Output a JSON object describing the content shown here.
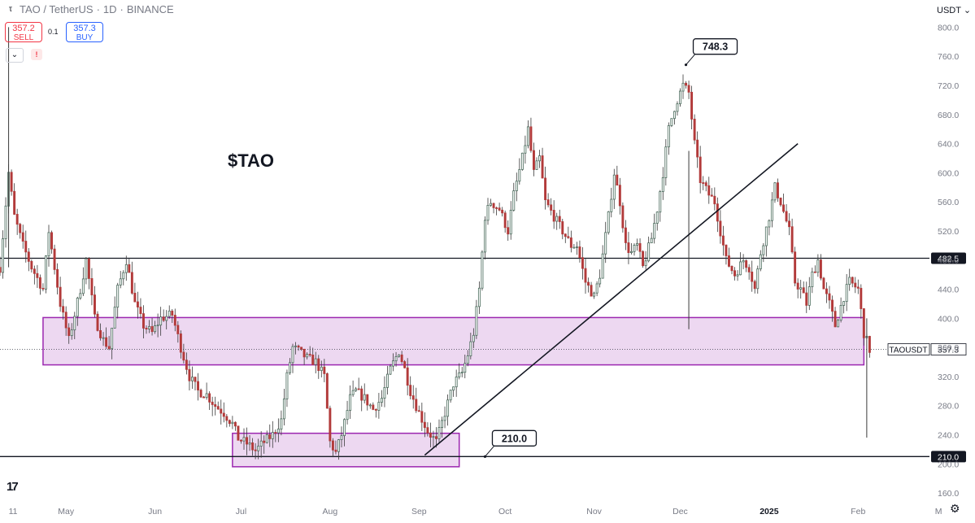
{
  "header": {
    "symbol": "TAO / TetherUS",
    "interval": "1D",
    "exchange": "BINANCE",
    "separator": "·"
  },
  "trade": {
    "sell_price": "357.2",
    "sell_label": "SELL",
    "spread": "0.1",
    "buy_price": "357.3",
    "buy_label": "BUY",
    "collapse_icon": "chevron-down-icon",
    "alert_icon": "warning-icon",
    "alert_glyph": "!"
  },
  "toolbar": {
    "currency": "USDT",
    "currency_icon": "chevron-down-icon",
    "settings_icon": "gear-icon"
  },
  "branding": {
    "logo_text": "17",
    "logo_icon": "tradingview-logo-icon"
  },
  "chart_data": {
    "type": "candlestick",
    "title": "$TAO",
    "symbol_tag": "TAOUSDT",
    "last_price": 357.3,
    "y_ticks": [
      160,
      200,
      240,
      280,
      320,
      360,
      400,
      440,
      480,
      520,
      560,
      600,
      640,
      680,
      720,
      760,
      800
    ],
    "y_range": [
      150,
      815
    ],
    "x_ticks": [
      {
        "label": "11",
        "x": 0
      },
      {
        "label": "May",
        "x": 20
      },
      {
        "label": "Jun",
        "x": 51
      },
      {
        "label": "Jul",
        "x": 81
      },
      {
        "label": "Aug",
        "x": 112
      },
      {
        "label": "Sep",
        "x": 143
      },
      {
        "label": "Oct",
        "x": 173
      },
      {
        "label": "Nov",
        "x": 204
      },
      {
        "label": "Dec",
        "x": 234
      },
      {
        "label": "2025",
        "x": 265
      },
      {
        "label": "Feb",
        "x": 296
      },
      {
        "label": "M",
        "x": 324
      }
    ],
    "x_range": [
      -3,
      320
    ],
    "horizontal_lines": [
      {
        "value": 482.5,
        "label": "482.5",
        "color": "#131722"
      },
      {
        "value": 210.0,
        "label": "210.0",
        "color": "#131722"
      }
    ],
    "zones": [
      {
        "x0": 12,
        "x1": 298,
        "y0": 336,
        "y1": 401,
        "color": "#9c27b0"
      },
      {
        "x0": 78,
        "x1": 157,
        "y0": 196,
        "y1": 242,
        "color": "#9c27b0"
      }
    ],
    "trendline": {
      "x0": 145,
      "y0": 212,
      "x1": 275,
      "y1": 640
    },
    "callouts": [
      {
        "label": "748.3",
        "x": 236,
        "value": 748.3,
        "anchor": "top"
      },
      {
        "label": "210.0",
        "x": 166,
        "value": 210.0,
        "anchor": "bottom"
      }
    ],
    "close_path": [
      [
        -3,
        470
      ],
      [
        0,
        600
      ],
      [
        2,
        540
      ],
      [
        5,
        500
      ],
      [
        8,
        470
      ],
      [
        12,
        440
      ],
      [
        14,
        520
      ],
      [
        18,
        420
      ],
      [
        21,
        370
      ],
      [
        25,
        440
      ],
      [
        27,
        480
      ],
      [
        30,
        400
      ],
      [
        33,
        370
      ],
      [
        35,
        360
      ],
      [
        38,
        440
      ],
      [
        41,
        480
      ],
      [
        44,
        420
      ],
      [
        47,
        390
      ],
      [
        50,
        380
      ],
      [
        53,
        400
      ],
      [
        57,
        405
      ],
      [
        60,
        360
      ],
      [
        63,
        320
      ],
      [
        66,
        300
      ],
      [
        69,
        295
      ],
      [
        72,
        280
      ],
      [
        75,
        270
      ],
      [
        78,
        255
      ],
      [
        80,
        235
      ],
      [
        83,
        228
      ],
      [
        86,
        218
      ],
      [
        89,
        230
      ],
      [
        92,
        240
      ],
      [
        95,
        260
      ],
      [
        97,
        320
      ],
      [
        99,
        360
      ],
      [
        101,
        355
      ],
      [
        104,
        345
      ],
      [
        107,
        340
      ],
      [
        110,
        320
      ],
      [
        112,
        230
      ],
      [
        114,
        215
      ],
      [
        116,
        240
      ],
      [
        119,
        290
      ],
      [
        121,
        300
      ],
      [
        124,
        290
      ],
      [
        127,
        275
      ],
      [
        130,
        290
      ],
      [
        133,
        330
      ],
      [
        136,
        355
      ],
      [
        138,
        330
      ],
      [
        140,
        300
      ],
      [
        143,
        270
      ],
      [
        146,
        245
      ],
      [
        149,
        230
      ],
      [
        152,
        270
      ],
      [
        155,
        310
      ],
      [
        158,
        325
      ],
      [
        160,
        350
      ],
      [
        162,
        380
      ],
      [
        164,
        440
      ],
      [
        166,
        540
      ],
      [
        168,
        560
      ],
      [
        171,
        550
      ],
      [
        174,
        520
      ],
      [
        176,
        570
      ],
      [
        179,
        620
      ],
      [
        181,
        660
      ],
      [
        183,
        600
      ],
      [
        185,
        620
      ],
      [
        187,
        560
      ],
      [
        190,
        540
      ],
      [
        193,
        520
      ],
      [
        196,
        500
      ],
      [
        198,
        500
      ],
      [
        201,
        450
      ],
      [
        204,
        430
      ],
      [
        206,
        460
      ],
      [
        209,
        540
      ],
      [
        211,
        600
      ],
      [
        213,
        560
      ],
      [
        215,
        500
      ],
      [
        217,
        490
      ],
      [
        219,
        500
      ],
      [
        221,
        470
      ],
      [
        224,
        510
      ],
      [
        226,
        550
      ],
      [
        228,
        600
      ],
      [
        230,
        660
      ],
      [
        232,
        690
      ],
      [
        235,
        720
      ],
      [
        237,
        710
      ],
      [
        239,
        640
      ],
      [
        241,
        590
      ],
      [
        244,
        570
      ],
      [
        246,
        560
      ],
      [
        248,
        520
      ],
      [
        250,
        480
      ],
      [
        253,
        460
      ],
      [
        256,
        480
      ],
      [
        258,
        470
      ],
      [
        260,
        440
      ],
      [
        262,
        490
      ],
      [
        265,
        540
      ],
      [
        267,
        580
      ],
      [
        269,
        560
      ],
      [
        272,
        520
      ],
      [
        274,
        450
      ],
      [
        276,
        440
      ],
      [
        278,
        420
      ],
      [
        280,
        460
      ],
      [
        282,
        480
      ],
      [
        284,
        440
      ],
      [
        286,
        420
      ],
      [
        288,
        390
      ],
      [
        291,
        430
      ],
      [
        293,
        450
      ],
      [
        296,
        440
      ],
      [
        298,
        380
      ],
      [
        300,
        357
      ]
    ],
    "spike_wicks": [
      {
        "x": 0,
        "high": 800,
        "low": 470
      },
      {
        "x": 237,
        "high": 630,
        "low": 385
      },
      {
        "x": 299,
        "high": 400,
        "low": 236
      }
    ]
  }
}
